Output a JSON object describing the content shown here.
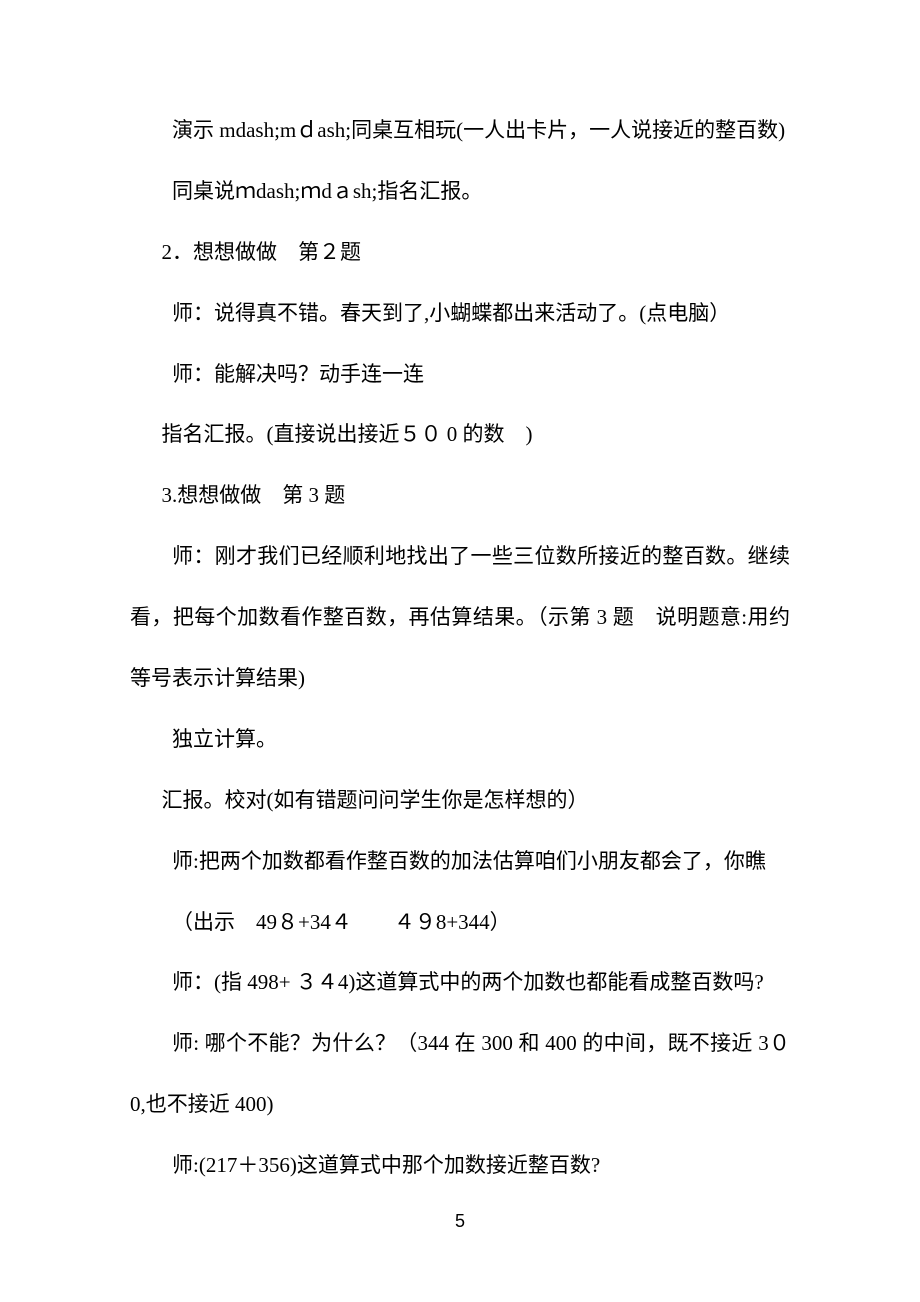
{
  "document": {
    "paragraphs": [
      "演示 mdash;mｄash;同桌互相玩(一人出卡片，一人说接近的整百数)",
      "同桌说ｍdash;ｍdａsh;指名汇报。",
      "2．想想做做　第２题",
      "师：说得真不错。春天到了,小蝴蝶都出来活动了。(点电脑）",
      "师：能解决吗？动手连一连",
      "指名汇报。(直接说出接近５０ 0 的数　)",
      "3.想想做做　第 3 题",
      "师：刚才我们已经顺利地找出了一些三位数所接近的整百数。继续看，把每个加数看作整百数，再估算结果。（示第 3 题　说明题意:用约等号表示计算结果)",
      "独立计算。",
      "汇报。校对(如有错题问问学生你是怎样想的）",
      "师:把两个加数都看作整百数的加法估算咱们小朋友都会了，你瞧",
      "（出示　49８+34４　　４９8+344）",
      "师：(指 498+ ３４4)这道算式中的两个加数也都能看成整百数吗?",
      "师: 哪个不能？为什么？（344 在 300 和 400 的中间，既不接近 3０0,也不接近 400)",
      "师:(217＋356)这道算式中那个加数接近整百数?"
    ],
    "pageNumber": "5",
    "fontSize": 21,
    "lineHeight": 2.9,
    "textColor": "#000000",
    "backgroundColor": "#ffffff",
    "indents": [
      2,
      2,
      1.5,
      2,
      2,
      1.5,
      1.5,
      2,
      2,
      1.5,
      2,
      2,
      2,
      2,
      2
    ]
  }
}
